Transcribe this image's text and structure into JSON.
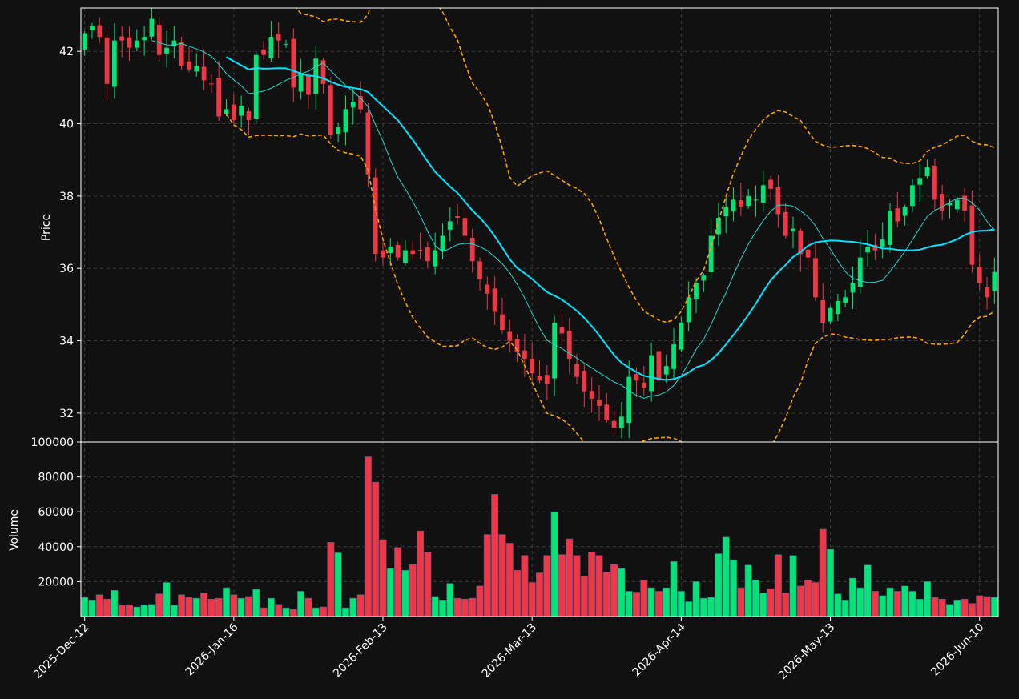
{
  "colors": {
    "background": "#111111",
    "up": "#00e676",
    "down": "#f23645",
    "ma_fast": "#25d6d0",
    "ma_slow": "#00e5ff",
    "bands": "#ffa000",
    "grid": "#3a3a3a",
    "spine": "#ffffff",
    "text": "#ffffff"
  },
  "chart_data": [
    {
      "type": "candlestick",
      "ylabel": "Price",
      "ylim": [
        31.2,
        43.2
      ],
      "yticks": [
        32,
        34,
        36,
        38,
        40,
        42
      ],
      "grid": true,
      "x_index_range": [
        -0.5,
        122.5
      ],
      "xtick_labels": [
        {
          "index": 0,
          "label": "2025-Dec-12"
        },
        {
          "index": 20,
          "label": "2026-Jan-16"
        },
        {
          "index": 40,
          "label": "2026-Feb-13"
        },
        {
          "index": 60,
          "label": "2026-Mar-13"
        },
        {
          "index": 80,
          "label": "2026-Apr-14"
        },
        {
          "index": 100,
          "label": "2026-May-13"
        },
        {
          "index": 120,
          "label": "2026-Jun-10"
        }
      ],
      "ohlc_close": [
        42.5,
        42.7,
        42.4,
        41.1,
        42.3,
        42.3,
        42.1,
        42.3,
        42.4,
        42.9,
        41.9,
        42.1,
        42.3,
        41.6,
        41.5,
        41.6,
        41.2,
        41.1,
        40.2,
        40.4,
        40.1,
        40.5,
        40.1,
        41.9,
        41.9,
        42.4,
        42.3,
        42.2,
        41.0,
        41.4,
        40.8,
        41.8,
        41.1,
        39.7,
        39.9,
        40.4,
        40.6,
        40.4,
        38.6,
        36.4,
        36.3,
        36.6,
        36.3,
        36.5,
        36.4,
        36.5,
        36.2,
        36.5,
        36.9,
        37.3,
        37.4,
        36.9,
        36.2,
        35.7,
        35.3,
        34.8,
        34.3,
        34.0,
        33.7,
        33.5,
        33.1,
        32.9,
        32.8,
        34.5,
        34.2,
        33.5,
        33.0,
        32.6,
        32.4,
        32.2,
        31.8,
        31.6,
        31.9,
        33.0,
        32.9,
        32.7,
        33.6,
        32.9,
        33.3,
        33.9,
        34.5,
        35.2,
        35.6,
        35.8,
        36.9,
        37.4,
        37.7,
        37.9,
        37.7,
        38.0,
        37.9,
        38.3,
        38.2,
        37.5,
        36.9,
        37.1,
        36.4,
        36.3,
        35.2,
        34.5,
        34.9,
        35.1,
        35.2,
        35.6,
        36.3,
        36.6,
        36.5,
        36.8,
        37.6,
        37.3,
        37.7,
        38.3,
        38.5,
        38.8,
        37.9,
        37.6,
        37.8,
        37.9,
        37.6,
        36.1,
        35.6,
        35.2,
        35.9
      ],
      "series": [
        {
          "name": "",
          "kind": "line",
          "style": "thin"
        },
        {
          "name": "",
          "kind": "line",
          "style": "thick"
        },
        {
          "name": "",
          "kind": "band-upper",
          "style": "dashed"
        },
        {
          "name": "",
          "kind": "band-lower",
          "style": "dashed"
        }
      ]
    },
    {
      "type": "bar",
      "ylabel": "Volume",
      "ylim": [
        0,
        100000
      ],
      "yticks": [
        20000,
        40000,
        60000,
        80000,
        100000
      ],
      "grid": true,
      "values": [
        11000,
        9500,
        12500,
        10000,
        15000,
        6500,
        6800,
        5500,
        6500,
        7000,
        13000,
        19500,
        6500,
        12500,
        11000,
        10500,
        13500,
        10000,
        10500,
        16500,
        12500,
        10500,
        11500,
        15500,
        5000,
        10500,
        7000,
        5000,
        4000,
        14500,
        10500,
        5000,
        5500,
        42500,
        36500,
        5000,
        10500,
        12500,
        91500,
        77000,
        44000,
        27500,
        39500,
        26500,
        30000,
        49000,
        37000,
        11500,
        9500,
        19000,
        10500,
        10000,
        10500,
        17500,
        47000,
        70000,
        47000,
        42000,
        26500,
        35000,
        19500,
        25000,
        35000,
        60000,
        35500,
        44500,
        35000,
        23000,
        37000,
        35000,
        25500,
        30000,
        27500,
        14500,
        14000,
        21000,
        16500,
        14500,
        16500,
        31500,
        14500,
        8500,
        20000,
        10500,
        11000,
        36000,
        45500,
        32500,
        16500,
        29500,
        21000,
        13500,
        16000,
        35500,
        13500,
        35000,
        17500,
        21000,
        19500,
        50000,
        38500,
        13000,
        9500,
        22000,
        16500,
        29500,
        14500,
        12000,
        16500,
        14500,
        17500,
        14500,
        10000,
        20000,
        11000,
        10000,
        7000,
        9500,
        10000,
        7500,
        12000,
        11500,
        11000
      ]
    }
  ]
}
